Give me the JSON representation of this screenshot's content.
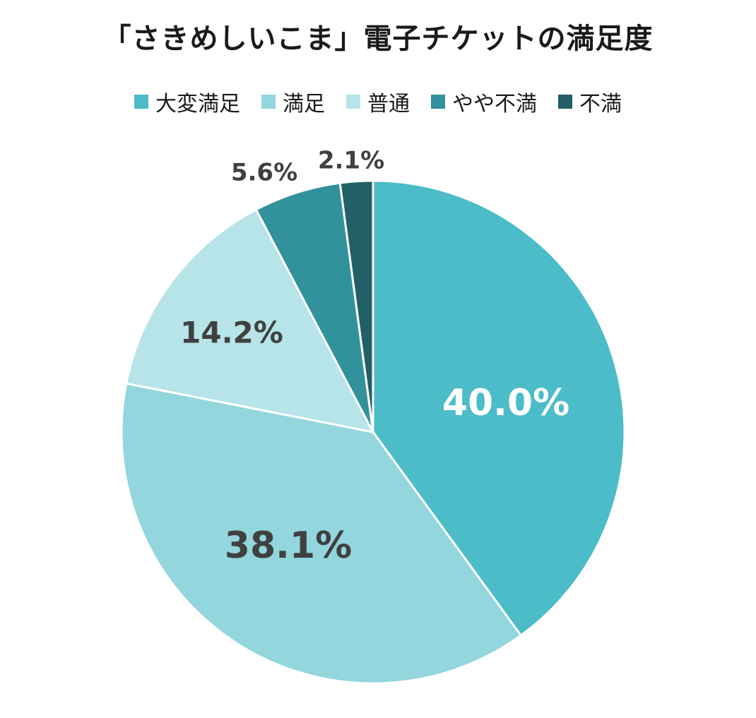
{
  "chart_data": {
    "type": "pie",
    "title": "「さきめしいこま」電子チケットの満足度",
    "categories": [
      "大変満足",
      "満足",
      "普通",
      "やや不満",
      "不満"
    ],
    "values": [
      40.0,
      38.1,
      14.2,
      5.6,
      2.1
    ],
    "labels": [
      "40.0%",
      "38.1%",
      "14.2%",
      "5.6%",
      "2.1%"
    ],
    "colors": [
      "#4BBCC8",
      "#93D6DD",
      "#B6E4E8",
      "#31929C",
      "#225F66"
    ],
    "label_colors": [
      "#ffffff",
      "#404040",
      "#404040",
      "#404040",
      "#404040"
    ],
    "start_angle": "12 o'clock",
    "direction": "clockwise",
    "legend_position": "top"
  }
}
